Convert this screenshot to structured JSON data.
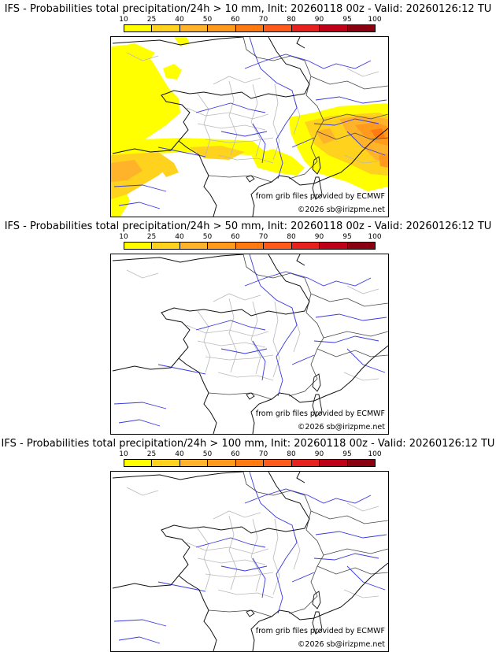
{
  "colorbar": {
    "ticks": [
      "10",
      "25",
      "40",
      "50",
      "60",
      "70",
      "80",
      "90",
      "95",
      "100"
    ],
    "colors": [
      "#ffff00",
      "#ffd21e",
      "#ffb32a",
      "#ff9a1c",
      "#ff7a10",
      "#ff5a1a",
      "#e8201e",
      "#c00018",
      "#8a0010",
      "#5a0008"
    ]
  },
  "credits": {
    "source": "from grib files provided by ECMWF",
    "copyright": "©2026 sb@irizpme.net"
  },
  "panels": [
    {
      "title": "IFS - Probabilities total precipitation/24h > 10 mm, Init: 20260118 00z - Valid: 20260126:12 TU"
    },
    {
      "title": "IFS - Probabilities total precipitation/24h > 50 mm, Init: 20260118 00z - Valid: 20260126:12 TU"
    },
    {
      "title": "IFS - Probabilities total precipitation/24h > 100 mm, Init: 20260118 00z - Valid: 20260126:12 TU"
    }
  ]
}
